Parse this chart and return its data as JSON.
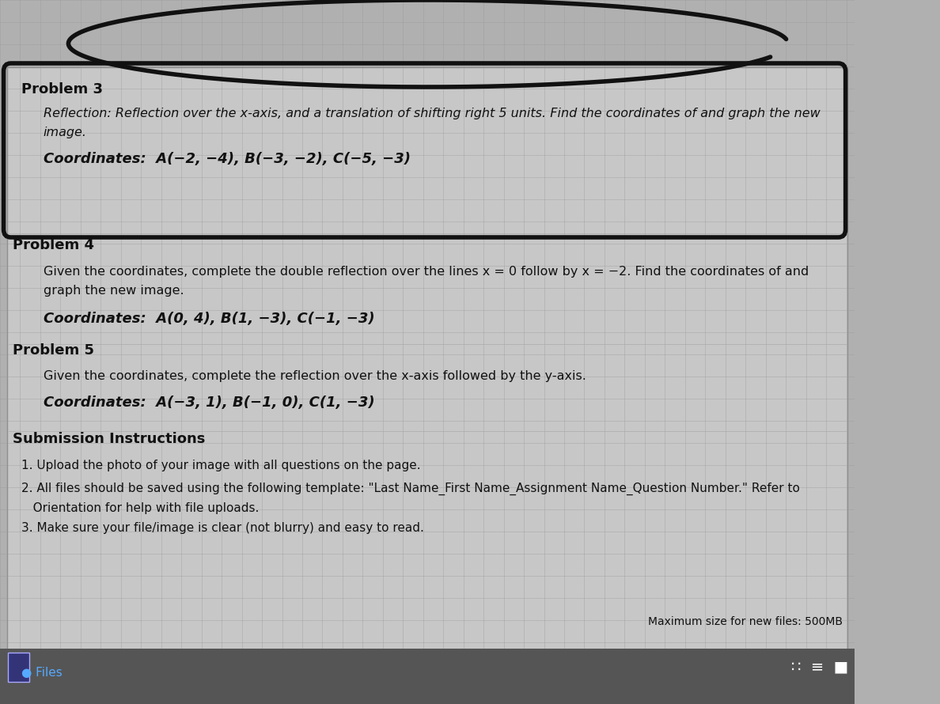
{
  "bg_color": "#b0b0b0",
  "panel_color": "#c8c8c8",
  "text_color": "#111111",
  "grid_line_color": "#999999",
  "title": "",
  "problem3_header": "Problem 3",
  "problem3_body1": "Reflection: Reflection over the x-axis, and a translation of shifting right 5 units. Find the coordinates of and graph the new",
  "problem3_body2": "image.",
  "problem3_coords": "Coordinates:  A(−2, −4), B(−3, −2), C(−5, −3)",
  "problem4_header": "Problem 4",
  "problem4_body1": "Given the coordinates, complete the double reflection over the lines x = 0 follow by x = −2. Find the coordinates of and",
  "problem4_body2": "graph the new image.",
  "problem4_coords": "Coordinates:  A(0, 4), B(1, −3), C(−1, −3)",
  "problem5_header": "Problem 5",
  "problem5_body1": "Given the coordinates, complete the reflection over the x-axis followed by the y-axis.",
  "problem5_coords": "Coordinates:  A(−3, 1), B(−1, 0), C(1, −3)",
  "submission_header": "Submission Instructions",
  "sub1": "1. Upload the photo of your image with all questions on the page.",
  "sub2": "2. All files should be saved using the following template: \"Last Name_First Name_Assignment Name_Question Number.\" Refer to",
  "sub2b": "   Orientation for help with file uploads.",
  "sub3": "3. Make sure your file/image is clear (not blurry) and easy to read.",
  "bottom_right": "Maximum size for new files: 500MB",
  "files_label": "Files"
}
